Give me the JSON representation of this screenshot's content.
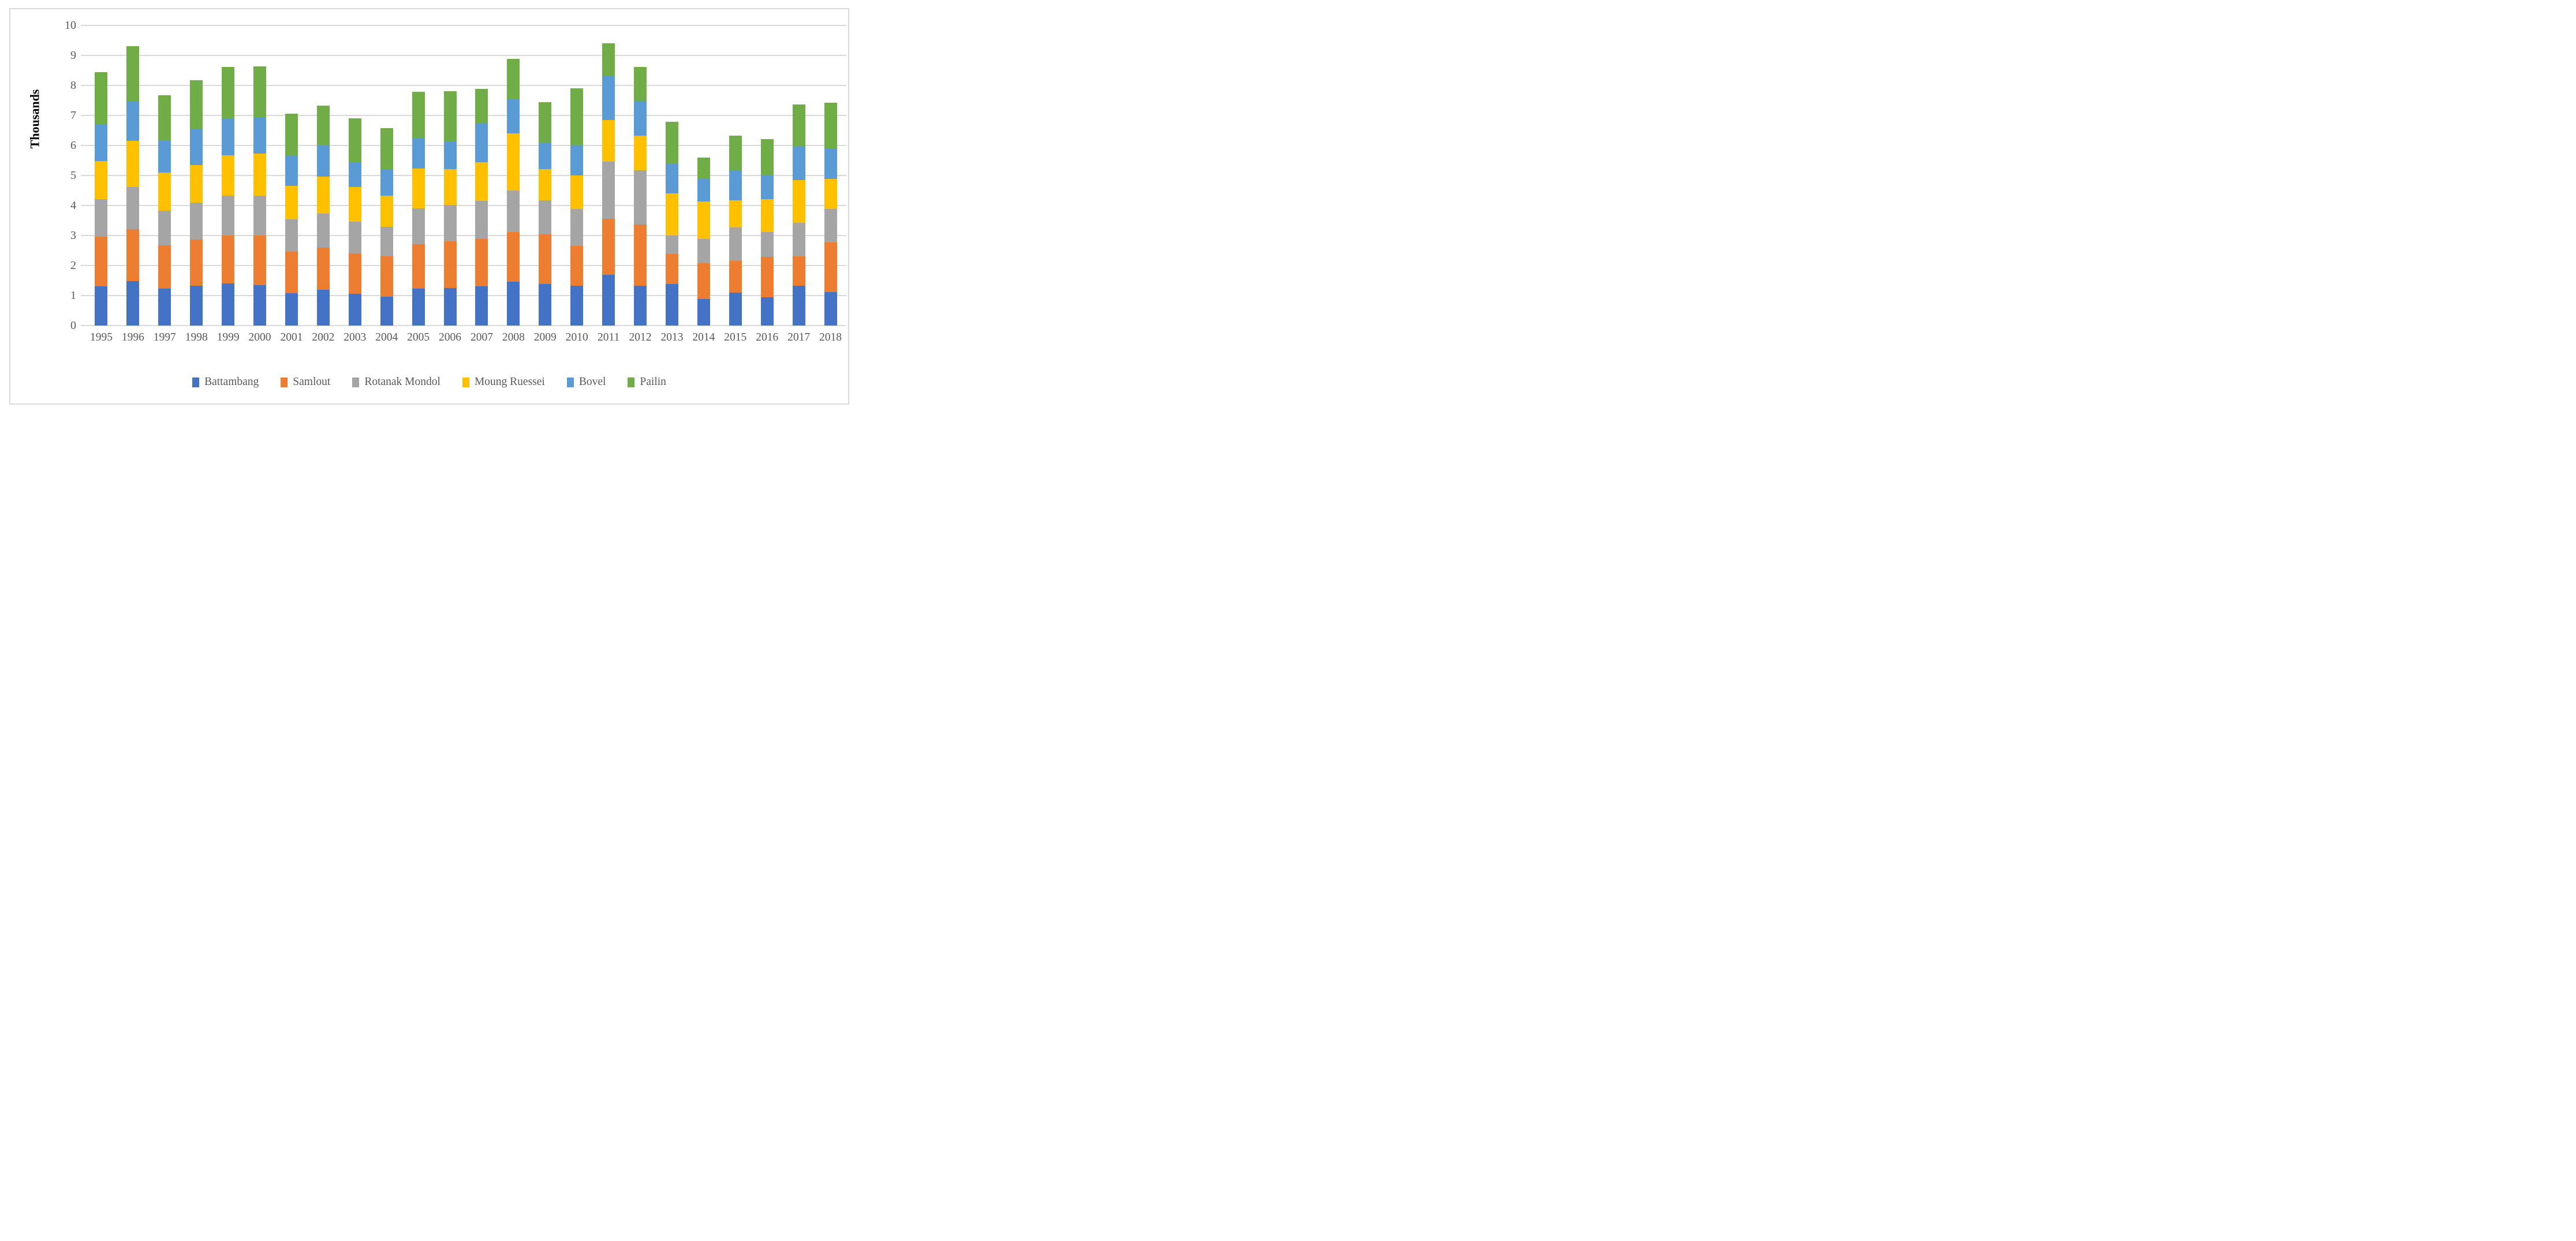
{
  "chart_data": {
    "type": "bar",
    "stacked": true,
    "title": "",
    "xlabel": "",
    "ylabel": "Thousands",
    "ylim": [
      0,
      10
    ],
    "ytick_step": 1,
    "grid": true,
    "legend_position": "bottom",
    "categories": [
      "1995",
      "1996",
      "1997",
      "1998",
      "1999",
      "2000",
      "2001",
      "2002",
      "2003",
      "2004",
      "2005",
      "2006",
      "2007",
      "2008",
      "2009",
      "2010",
      "2011",
      "2012",
      "2013",
      "2014",
      "2015",
      "2016",
      "2017",
      "2018"
    ],
    "series": [
      {
        "name": "Battambang",
        "color": "#4472C4",
        "values": [
          1.3,
          1.48,
          1.24,
          1.33,
          1.4,
          1.34,
          1.08,
          1.19,
          1.05,
          0.97,
          1.23,
          1.25,
          1.3,
          1.46,
          1.38,
          1.32,
          1.7,
          1.32,
          1.38,
          0.88,
          1.09,
          0.95,
          1.33,
          1.11
        ]
      },
      {
        "name": "Samlout",
        "color": "#ED7D31",
        "values": [
          1.67,
          1.73,
          1.43,
          1.53,
          1.6,
          1.66,
          1.39,
          1.4,
          1.36,
          1.33,
          1.49,
          1.56,
          1.59,
          1.66,
          1.66,
          1.34,
          1.85,
          2.05,
          1.0,
          1.19,
          1.06,
          1.34,
          0.98,
          1.65
        ]
      },
      {
        "name": "Rotanak Mondol",
        "color": "#A5A5A5",
        "values": [
          1.25,
          1.41,
          1.16,
          1.24,
          1.33,
          1.32,
          1.07,
          1.14,
          1.05,
          0.99,
          1.19,
          1.21,
          1.26,
          1.38,
          1.13,
          1.22,
          1.92,
          1.8,
          0.62,
          0.82,
          1.12,
          0.83,
          1.11,
          1.12
        ]
      },
      {
        "name": "Moung Ruessei",
        "color": "#FFC000",
        "values": [
          1.26,
          1.53,
          1.26,
          1.25,
          1.34,
          1.41,
          1.12,
          1.23,
          1.16,
          1.04,
          1.32,
          1.19,
          1.3,
          1.9,
          1.04,
          1.12,
          1.38,
          1.15,
          1.41,
          1.25,
          0.91,
          1.1,
          1.43,
          1.01
        ]
      },
      {
        "name": "Bovel",
        "color": "#5B9BD5",
        "values": [
          1.21,
          1.32,
          1.07,
          1.19,
          1.23,
          1.22,
          0.99,
          1.05,
          0.83,
          0.88,
          1.02,
          0.93,
          1.28,
          1.14,
          0.89,
          1.0,
          1.47,
          1.16,
          0.97,
          0.76,
          0.99,
          0.78,
          1.12,
          0.99
        ]
      },
      {
        "name": "Pailin",
        "color": "#70AD47",
        "values": [
          1.75,
          1.84,
          1.52,
          1.63,
          1.71,
          1.69,
          1.4,
          1.31,
          1.45,
          1.37,
          1.54,
          1.66,
          1.16,
          1.34,
          1.35,
          1.9,
          1.08,
          1.13,
          1.4,
          0.7,
          1.15,
          1.22,
          1.4,
          1.55
        ]
      }
    ],
    "totals": [
      8.44,
      9.31,
      7.68,
      8.17,
      8.61,
      8.64,
      7.05,
      7.32,
      6.9,
      6.58,
      7.79,
      7.8,
      7.89,
      8.88,
      7.45,
      7.9,
      9.4,
      8.61,
      6.78,
      5.6,
      6.32,
      6.22,
      7.37,
      7.43
    ]
  },
  "styles": {
    "background": "#FFFFFF",
    "frame_border_color": "#D9D9D9",
    "gridline_color": "#D9D9D9",
    "axis_line_color": "#D9D9D9",
    "axis_text_color": "#595959",
    "y_title_color": "#000000"
  }
}
